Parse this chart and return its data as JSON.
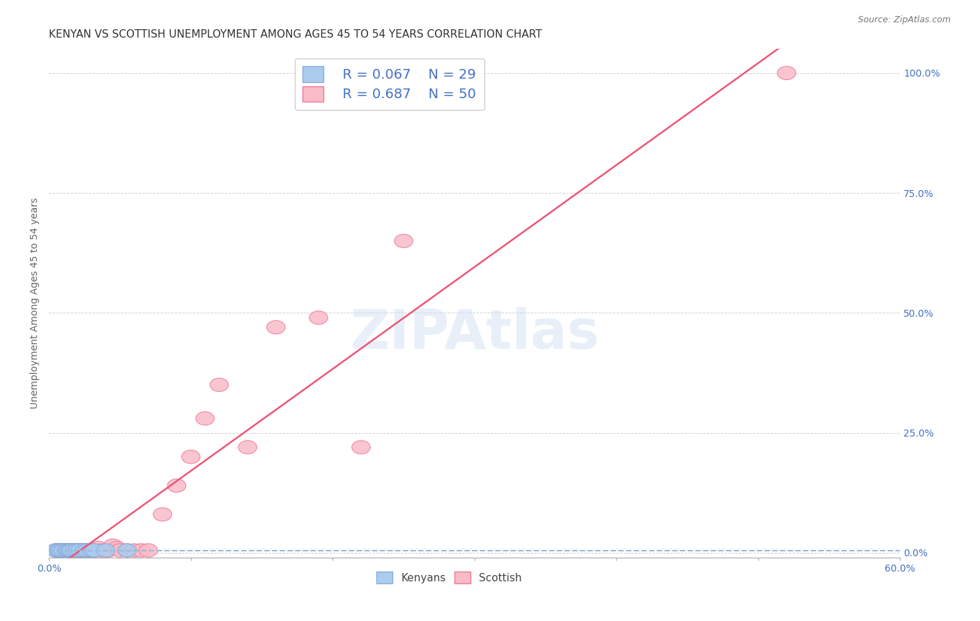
{
  "title": "KENYAN VS SCOTTISH UNEMPLOYMENT AMONG AGES 45 TO 54 YEARS CORRELATION CHART",
  "source": "Source: ZipAtlas.com",
  "ylabel": "Unemployment Among Ages 45 to 54 years",
  "xlim": [
    0.0,
    0.6
  ],
  "ylim": [
    -0.01,
    1.05
  ],
  "legend_r1": "R = 0.067",
  "legend_n1": "N = 29",
  "legend_r2": "R = 0.687",
  "legend_n2": "N = 50",
  "kenyan_color": "#aaccee",
  "scottish_color": "#f9bbc8",
  "kenyan_edge_color": "#88aadd",
  "scottish_edge_color": "#ee7799",
  "kenyan_line_color": "#99bbdd",
  "scottish_line_color": "#ee5577",
  "watermark": "ZIPAtlas",
  "kenyan_x": [
    0.005,
    0.005,
    0.005,
    0.005,
    0.005,
    0.007,
    0.007,
    0.008,
    0.01,
    0.01,
    0.01,
    0.01,
    0.012,
    0.013,
    0.014,
    0.015,
    0.016,
    0.018,
    0.02,
    0.02,
    0.022,
    0.025,
    0.025,
    0.027,
    0.03,
    0.03,
    0.032,
    0.04,
    0.055
  ],
  "kenyan_y": [
    0.005,
    0.005,
    0.005,
    0.005,
    0.005,
    0.005,
    0.005,
    0.005,
    0.005,
    0.005,
    0.005,
    0.005,
    0.005,
    0.005,
    0.005,
    0.005,
    0.005,
    0.005,
    0.005,
    0.005,
    0.005,
    0.005,
    0.005,
    0.005,
    0.005,
    0.005,
    0.005,
    0.005,
    0.005
  ],
  "scottish_x": [
    0.005,
    0.005,
    0.007,
    0.008,
    0.009,
    0.01,
    0.01,
    0.011,
    0.012,
    0.013,
    0.014,
    0.015,
    0.015,
    0.016,
    0.017,
    0.018,
    0.019,
    0.02,
    0.021,
    0.022,
    0.023,
    0.024,
    0.025,
    0.026,
    0.028,
    0.03,
    0.032,
    0.033,
    0.035,
    0.037,
    0.04,
    0.042,
    0.045,
    0.048,
    0.05,
    0.055,
    0.06,
    0.065,
    0.07,
    0.08,
    0.09,
    0.1,
    0.11,
    0.12,
    0.14,
    0.16,
    0.19,
    0.22,
    0.25,
    0.52
  ],
  "scottish_y": [
    0.005,
    0.005,
    0.005,
    0.005,
    0.005,
    0.005,
    0.005,
    0.005,
    0.005,
    0.005,
    0.005,
    0.005,
    0.005,
    0.005,
    0.005,
    0.005,
    0.005,
    0.005,
    0.005,
    0.005,
    0.005,
    0.005,
    0.005,
    0.005,
    0.005,
    0.005,
    0.005,
    0.005,
    0.01,
    0.005,
    0.005,
    0.005,
    0.015,
    0.01,
    0.005,
    0.005,
    0.005,
    0.005,
    0.005,
    0.08,
    0.14,
    0.2,
    0.28,
    0.35,
    0.22,
    0.47,
    0.49,
    0.22,
    0.65,
    1.0
  ],
  "grid_color": "#cccccc",
  "background_color": "#ffffff",
  "title_fontsize": 11,
  "axis_label_fontsize": 10,
  "tick_fontsize": 10,
  "legend_fontsize": 14
}
